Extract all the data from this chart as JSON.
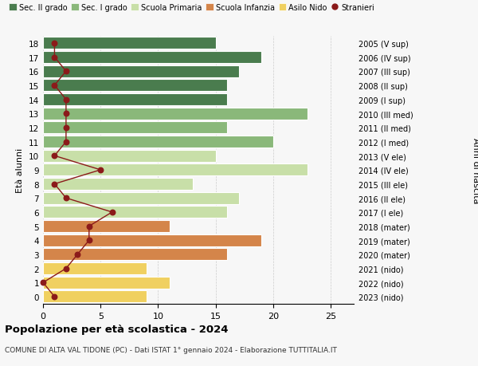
{
  "ages": [
    18,
    17,
    16,
    15,
    14,
    13,
    12,
    11,
    10,
    9,
    8,
    7,
    6,
    5,
    4,
    3,
    2,
    1,
    0
  ],
  "right_labels": [
    "2005 (V sup)",
    "2006 (IV sup)",
    "2007 (III sup)",
    "2008 (II sup)",
    "2009 (I sup)",
    "2010 (III med)",
    "2011 (II med)",
    "2012 (I med)",
    "2013 (V ele)",
    "2014 (IV ele)",
    "2015 (III ele)",
    "2016 (II ele)",
    "2017 (I ele)",
    "2018 (mater)",
    "2019 (mater)",
    "2020 (mater)",
    "2021 (nido)",
    "2022 (nido)",
    "2023 (nido)"
  ],
  "bar_values": [
    15,
    19,
    17,
    16,
    16,
    23,
    16,
    20,
    15,
    23,
    13,
    17,
    16,
    11,
    19,
    16,
    9,
    11,
    9
  ],
  "bar_colors": [
    "#4a7c4e",
    "#4a7c4e",
    "#4a7c4e",
    "#4a7c4e",
    "#4a7c4e",
    "#8ab87a",
    "#8ab87a",
    "#8ab87a",
    "#c8dfa8",
    "#c8dfa8",
    "#c8dfa8",
    "#c8dfa8",
    "#c8dfa8",
    "#d4854a",
    "#d4854a",
    "#d4854a",
    "#f0d060",
    "#f0d060",
    "#f0d060"
  ],
  "stranieri_values": [
    1,
    1,
    2,
    1,
    2,
    2,
    2,
    2,
    1,
    5,
    1,
    2,
    6,
    4,
    4,
    3,
    2,
    0,
    1
  ],
  "stranieri_color": "#8b1a1a",
  "legend_labels": [
    "Sec. II grado",
    "Sec. I grado",
    "Scuola Primaria",
    "Scuola Infanzia",
    "Asilo Nido",
    "Stranieri"
  ],
  "legend_colors": [
    "#4a7c4e",
    "#8ab87a",
    "#c8dfa8",
    "#d4854a",
    "#f0d060",
    "#8b1a1a"
  ],
  "ylabel_left": "Età alunni",
  "ylabel_right": "Anni di nascita",
  "title": "Popolazione per età scolastica - 2024",
  "subtitle": "COMUNE DI ALTA VAL TIDONE (PC) - Dati ISTAT 1° gennaio 2024 - Elaborazione TUTTITALIA.IT",
  "xlim": [
    0,
    27
  ],
  "background_color": "#f7f7f7"
}
